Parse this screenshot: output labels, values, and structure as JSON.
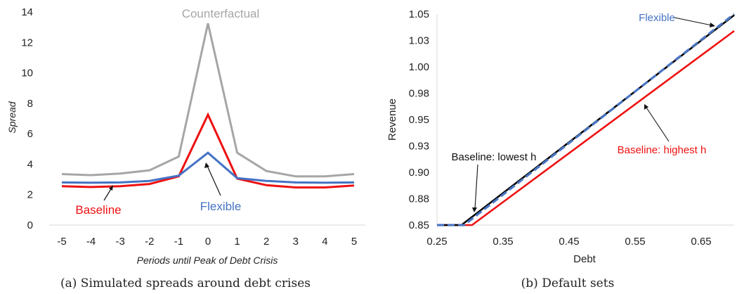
{
  "chart_data": [
    {
      "type": "line",
      "categories": [
        "-5",
        "-4",
        "-3",
        "-2",
        "-1",
        "0",
        "1",
        "2",
        "3",
        "4",
        "5"
      ],
      "xlabel": "Periods until Peak of Debt Crisis",
      "ylabel": "Spread",
      "ylim": [
        0,
        14
      ],
      "yticks": [
        "0",
        "2",
        "4",
        "6",
        "8",
        "10",
        "12",
        "14"
      ],
      "grid": false,
      "series": [
        {
          "name": "Counterfactual",
          "color": "#a6a6a6",
          "values": [
            3.35,
            3.28,
            3.38,
            3.6,
            4.5,
            13.25,
            4.75,
            3.55,
            3.2,
            3.2,
            3.35
          ]
        },
        {
          "name": "Baseline",
          "color": "#ee1111",
          "values": [
            2.55,
            2.5,
            2.55,
            2.7,
            3.2,
            7.25,
            3.05,
            2.62,
            2.47,
            2.47,
            2.6
          ]
        },
        {
          "name": "Flexible",
          "color": "#4472c4",
          "values": [
            2.8,
            2.78,
            2.8,
            2.9,
            3.25,
            4.75,
            3.08,
            2.9,
            2.8,
            2.78,
            2.8
          ]
        }
      ],
      "annotations": [
        "Counterfactual",
        "Baseline",
        "Flexible"
      ],
      "caption": "(a) Simulated spreads around debt crises"
    },
    {
      "type": "line",
      "xlabel": "Debt",
      "ylabel": "Revenue",
      "xlim": [
        0.25,
        0.7
      ],
      "ylim": [
        0.85,
        1.05
      ],
      "xticks": [
        "0.25",
        "0.35",
        "0.45",
        "0.55",
        "0.65"
      ],
      "yticks": [
        "0.85",
        "0.88",
        "0.90",
        "0.93",
        "0.95",
        "0.98",
        "1.00",
        "1.03",
        "1.05"
      ],
      "grid": false,
      "series": [
        {
          "name": "Baseline: lowest h",
          "color": "#000000",
          "dash": false,
          "x": [
            0.25,
            0.287,
            0.7
          ],
          "y": [
            0.85,
            0.85,
            1.049
          ]
        },
        {
          "name": "Flexible",
          "color": "#4a76c4",
          "dash": true,
          "x": [
            0.25,
            0.291,
            0.7
          ],
          "y": [
            0.85,
            0.85,
            1.05
          ]
        },
        {
          "name": "Baseline: highest h",
          "color": "#ee1111",
          "dash": false,
          "x": [
            0.25,
            0.303,
            0.7
          ],
          "y": [
            0.85,
            0.85,
            1.034
          ]
        }
      ],
      "annotations": [
        "Flexible",
        "Baseline: lowest h",
        "Baseline: highest h"
      ],
      "caption": "(b) Default sets"
    }
  ]
}
